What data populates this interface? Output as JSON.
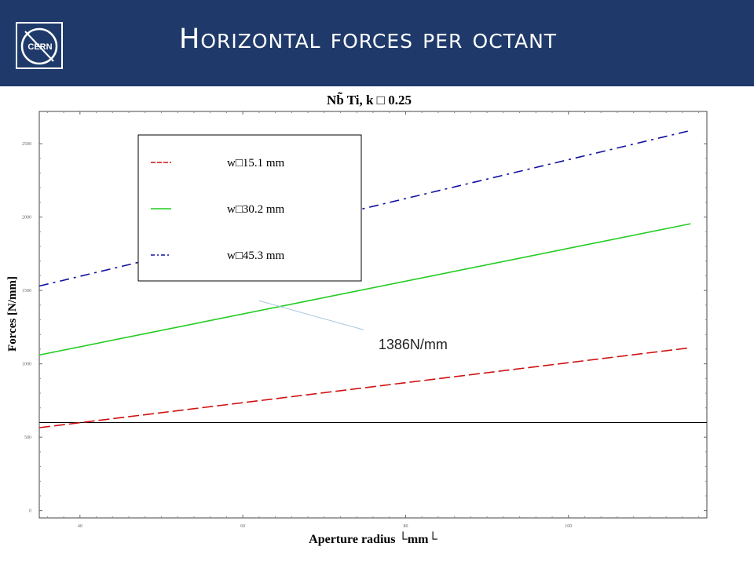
{
  "header": {
    "title": "Horizontal forces per octant",
    "logo_text": "CERN",
    "background": "#1f3a6a"
  },
  "chart_data": {
    "type": "line",
    "title": "Nb̃  Ti, k □ 0.25",
    "xlabel": "Aperture radius └mm└",
    "ylabel": "Forces [N/mm]",
    "xlim": [
      35,
      117
    ],
    "ylim": [
      -50,
      2720
    ],
    "xticks": [
      40,
      60,
      80,
      100
    ],
    "yticks": [
      0,
      500,
      1000,
      1500,
      2000,
      2500
    ],
    "legend_position": "top-left",
    "reference_line_y": 600,
    "annotation": {
      "text": "1386N/mm",
      "x": 62,
      "y": 1430
    },
    "series": [
      {
        "name": "w□15.1 mm",
        "color": "#d01010",
        "dash": "red-dash",
        "x": [
          35,
          115
        ],
        "y": [
          565,
          1110
        ]
      },
      {
        "name": "w□30.2 mm",
        "color": "#22cc22",
        "dash": "solid",
        "x": [
          35,
          115
        ],
        "y": [
          1060,
          1955
        ]
      },
      {
        "name": "w□45.3 mm",
        "color": "#1010a0",
        "dash": "dash-dot",
        "x": [
          35,
          115
        ],
        "y": [
          1530,
          2590
        ]
      }
    ]
  }
}
